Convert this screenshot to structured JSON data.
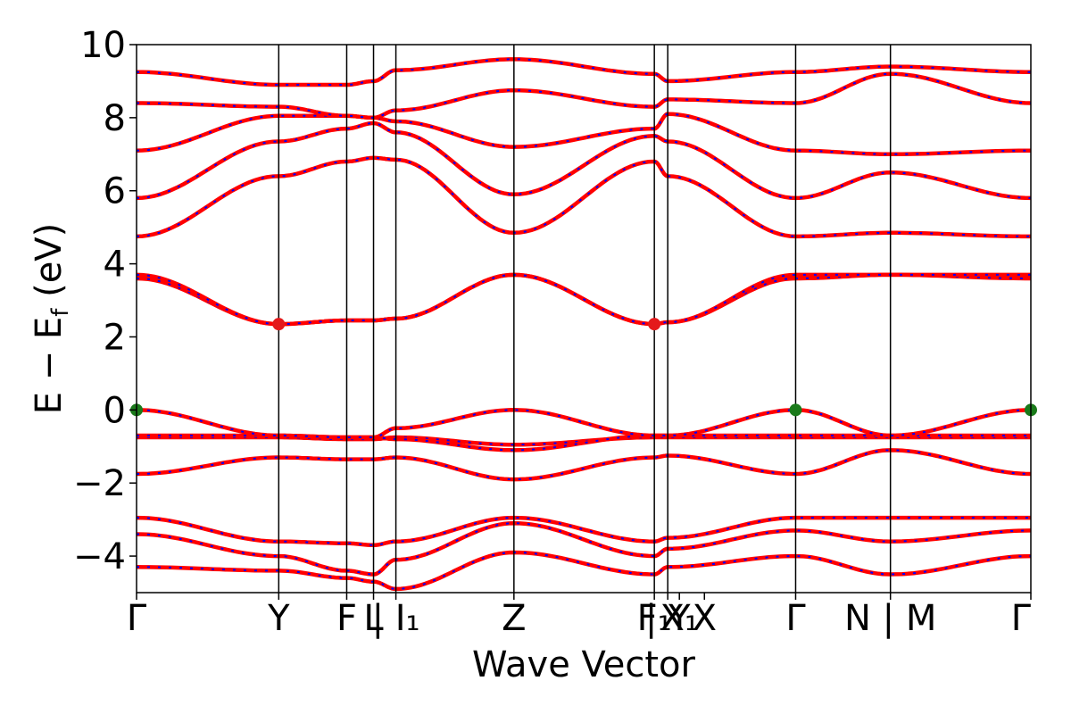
{
  "chart_data": {
    "type": "line",
    "title": "",
    "xlabel": "Wave Vector",
    "ylabel": "E − E",
    "ylabel_sub": "f",
    "ylabel_unit": " (eV)",
    "ylim": [
      -5,
      10
    ],
    "yticks": [
      -4,
      -2,
      0,
      2,
      4,
      6,
      8,
      10
    ],
    "ytick_labels": [
      "−4",
      "−2",
      "0",
      "2",
      "4",
      "6",
      "8",
      "10"
    ],
    "xlim": [
      0,
      1
    ],
    "grid": false,
    "legend": "none",
    "kpath": [
      {
        "x": 0.0,
        "label": "Γ"
      },
      {
        "x": 0.159,
        "label": "Y"
      },
      {
        "x": 0.235,
        "label": "F"
      },
      {
        "x": 0.265,
        "label": "L"
      },
      {
        "x": 0.29,
        "label": "| I₁"
      },
      {
        "x": 0.422,
        "label": "Z"
      },
      {
        "x": 0.579,
        "label": "F₁"
      },
      {
        "x": 0.594,
        "label": "| Y"
      },
      {
        "x": 0.607,
        "label": "X₁"
      },
      {
        "x": 0.635,
        "label": "X"
      },
      {
        "x": 0.737,
        "label": "Γ"
      },
      {
        "x": 0.843,
        "label": "N | M"
      },
      {
        "x": 1.0,
        "label": "Γ"
      }
    ],
    "vlines": [
      0.159,
      0.235,
      0.265,
      0.29,
      0.422,
      0.579,
      0.594,
      0.737,
      0.843
    ],
    "band_colors": {
      "line": "#ff0000",
      "dash": "#0000ff"
    },
    "bands": [
      {
        "x": [
          0,
          0.159,
          0.235,
          0.265,
          0.29,
          0.422,
          0.579,
          0.594,
          0.737,
          0.843,
          1.0
        ],
        "y": [
          -1.75,
          -1.3,
          -1.35,
          -1.35,
          -1.3,
          -1.9,
          -1.3,
          -1.25,
          -1.75,
          -1.1,
          -1.75
        ]
      },
      {
        "x": [
          0,
          0.159,
          0.235,
          0.265,
          0.29,
          0.422,
          0.579,
          0.594,
          0.737,
          0.843,
          1.0
        ],
        "y": [
          -0.75,
          -0.75,
          -0.8,
          -0.8,
          -0.75,
          -0.95,
          -0.75,
          -0.75,
          -0.75,
          -0.75,
          -0.75
        ]
      },
      {
        "x": [
          0,
          0.159,
          0.235,
          0.265,
          0.29,
          0.422,
          0.579,
          0.594,
          0.737,
          0.843,
          1.0
        ],
        "y": [
          -0.7,
          -0.7,
          -0.75,
          -0.75,
          -0.8,
          -1.1,
          -0.7,
          -0.7,
          -0.7,
          -0.7,
          -0.7
        ]
      },
      {
        "x": [
          0,
          0.159,
          0.235,
          0.265,
          0.29,
          0.422,
          0.579,
          0.594,
          0.737,
          0.843,
          1.0
        ],
        "y": [
          0.0,
          -0.7,
          -0.75,
          -0.75,
          -0.5,
          0.0,
          -0.7,
          -0.7,
          0.0,
          -0.7,
          0.0
        ]
      },
      {
        "x": [
          0,
          0.159,
          0.235,
          0.265,
          0.29,
          0.422,
          0.579,
          0.594,
          0.737,
          0.843,
          1.0
        ],
        "y": [
          3.6,
          2.35,
          2.45,
          2.45,
          2.5,
          3.7,
          2.35,
          2.4,
          3.6,
          3.7,
          3.6
        ]
      },
      {
        "x": [
          0,
          0.159,
          0.235,
          0.265,
          0.29,
          0.422,
          0.579,
          0.594,
          0.737,
          0.843,
          1.0
        ],
        "y": [
          3.7,
          2.35,
          2.45,
          2.45,
          2.5,
          3.7,
          2.35,
          2.4,
          3.7,
          3.7,
          3.7
        ]
      },
      {
        "x": [
          0,
          0.159,
          0.235,
          0.265,
          0.29,
          0.422,
          0.579,
          0.594,
          0.737,
          0.843,
          1.0
        ],
        "y": [
          4.75,
          6.4,
          6.8,
          6.9,
          6.85,
          4.85,
          6.8,
          6.4,
          4.75,
          4.85,
          4.75
        ]
      },
      {
        "x": [
          0,
          0.159,
          0.235,
          0.265,
          0.29,
          0.422,
          0.579,
          0.594,
          0.737,
          0.843,
          1.0
        ],
        "y": [
          5.8,
          7.35,
          7.7,
          7.85,
          7.6,
          5.9,
          7.5,
          7.35,
          5.8,
          6.5,
          5.8
        ]
      },
      {
        "x": [
          0,
          0.159,
          0.235,
          0.265,
          0.29,
          0.422,
          0.579,
          0.594,
          0.737,
          0.843,
          1.0
        ],
        "y": [
          7.1,
          8.05,
          8.05,
          8.0,
          7.9,
          7.2,
          7.7,
          8.1,
          7.1,
          7.0,
          7.1
        ]
      },
      {
        "x": [
          0,
          0.159,
          0.235,
          0.265,
          0.29,
          0.422,
          0.579,
          0.594,
          0.737,
          0.843,
          1.0
        ],
        "y": [
          8.4,
          8.3,
          8.05,
          8.0,
          8.2,
          8.75,
          8.3,
          8.5,
          8.4,
          9.2,
          8.4
        ]
      },
      {
        "x": [
          0,
          0.159,
          0.235,
          0.265,
          0.29,
          0.422,
          0.579,
          0.594,
          0.737,
          0.843,
          1.0
        ],
        "y": [
          9.25,
          8.9,
          8.9,
          9.0,
          9.3,
          9.6,
          9.2,
          9.0,
          9.25,
          9.4,
          9.25
        ]
      },
      {
        "x": [
          0,
          0.159,
          0.235,
          0.265,
          0.29,
          0.422,
          0.579,
          0.594,
          0.737,
          0.843,
          1.0
        ],
        "y": [
          -2.95,
          -3.6,
          -3.65,
          -3.7,
          -3.6,
          -2.95,
          -3.6,
          -3.5,
          -2.95,
          -2.95,
          -2.95
        ]
      },
      {
        "x": [
          0,
          0.159,
          0.235,
          0.265,
          0.29,
          0.422,
          0.579,
          0.594,
          0.737,
          0.843,
          1.0
        ],
        "y": [
          -3.4,
          -4.0,
          -4.4,
          -4.5,
          -4.1,
          -3.1,
          -4.0,
          -3.8,
          -3.3,
          -3.6,
          -3.3
        ]
      },
      {
        "x": [
          0,
          0.159,
          0.235,
          0.265,
          0.29,
          0.422,
          0.579,
          0.594,
          0.737,
          0.843,
          1.0
        ],
        "y": [
          -4.3,
          -4.4,
          -4.6,
          -4.7,
          -4.9,
          -3.9,
          -4.5,
          -4.3,
          -4.0,
          -4.5,
          -4.0
        ]
      }
    ],
    "markers": [
      {
        "x": 0.159,
        "y": 2.35,
        "color": "#e41a1c"
      },
      {
        "x": 0.579,
        "y": 2.35,
        "color": "#e41a1c"
      },
      {
        "x": 0.0,
        "y": 0.0,
        "color": "#1a7a1a"
      },
      {
        "x": 0.737,
        "y": 0.0,
        "color": "#1a7a1a"
      },
      {
        "x": 1.0,
        "y": 0.0,
        "color": "#1a7a1a"
      }
    ]
  }
}
